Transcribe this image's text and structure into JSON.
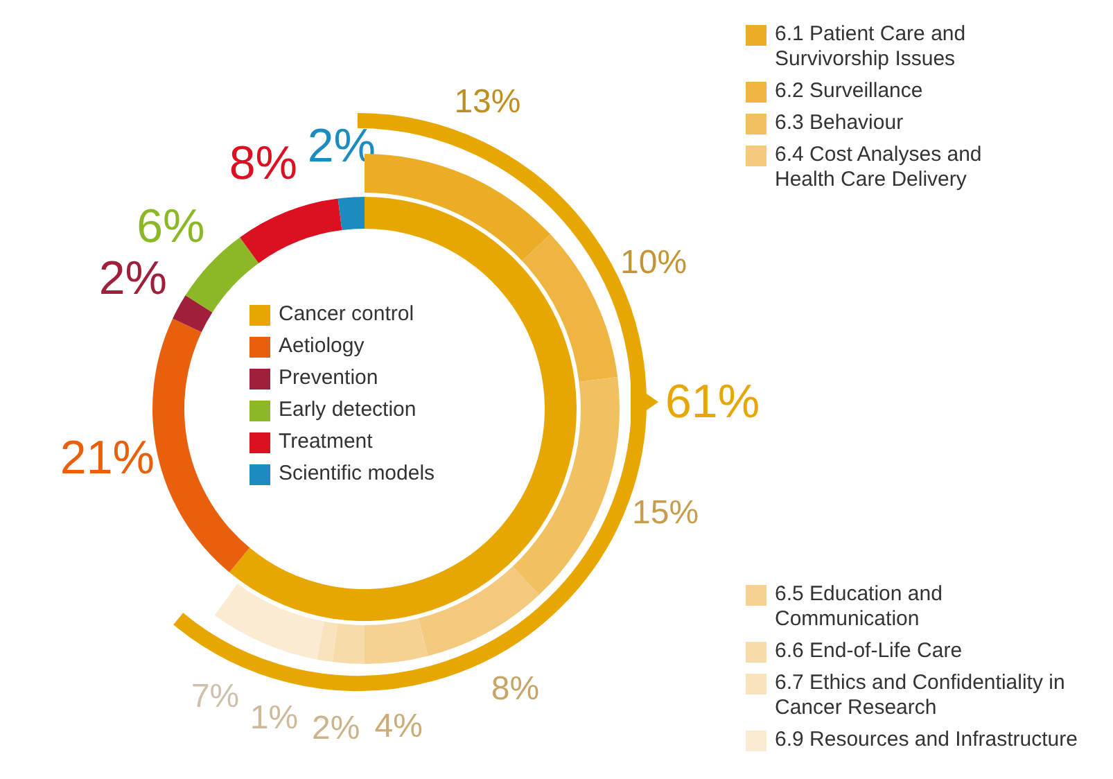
{
  "chart_data": [
    {
      "type": "donut",
      "legend": "center",
      "categories": [
        "Cancer control",
        "Aetiology",
        "Prevention",
        "Early detection",
        "Treatment",
        "Scientific models"
      ],
      "values": [
        61,
        21,
        2,
        6,
        8,
        2
      ],
      "colors": [
        "#e8a700",
        "#e8600e",
        "#a0203c",
        "#8cb828",
        "#dc1020",
        "#1a8cc0"
      ],
      "value_labels": [
        "61%",
        "21%",
        "2%",
        "6%",
        "8%",
        "2%"
      ]
    },
    {
      "type": "donut",
      "legend": "right",
      "categories": [
        "6.1 Patient Care and Survivorship Issues",
        "6.2 Surveillance",
        "6.3 Behaviour",
        "6.4 Cost Analyses and Health Care Delivery",
        "6.5 Education and Communication",
        "6.6 End-of-Life Care",
        "6.7 Ethics and Confidentiality in Cancer Research",
        "6.9 Resources and Infrastructure"
      ],
      "values": [
        13,
        10,
        15,
        8,
        4,
        2,
        1,
        7
      ],
      "colors": [
        "#eaad25",
        "#eeb641",
        "#f1c060",
        "#f3c97e",
        "#f5d292",
        "#f7dba9",
        "#f9e3bd",
        "#fbebd2"
      ],
      "value_labels": [
        "13%",
        "10%",
        "15%",
        "8%",
        "4%",
        "2%",
        "1%",
        "7%"
      ]
    }
  ]
}
